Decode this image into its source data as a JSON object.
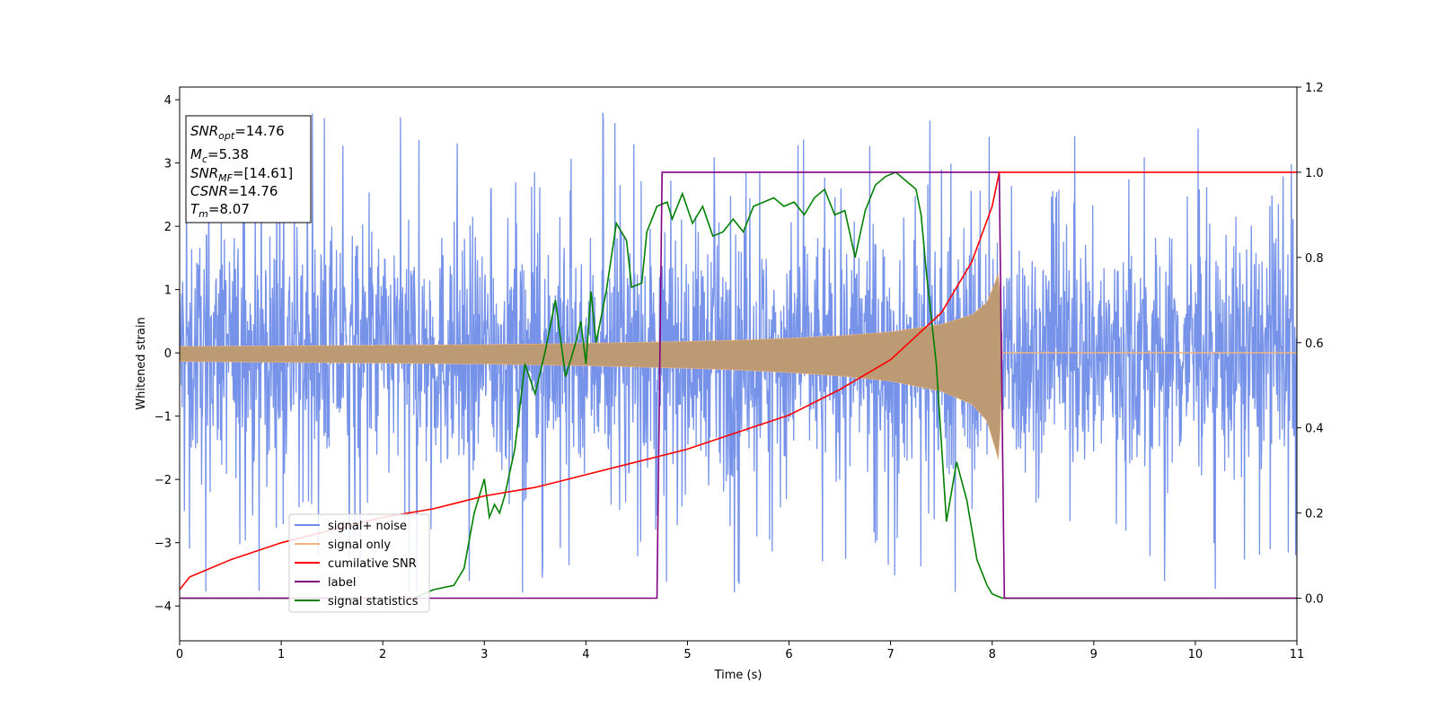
{
  "chart_data": {
    "type": "line",
    "title": "",
    "xlabel": "Time (s)",
    "ylabel": "Whitened strain",
    "y2label": "",
    "xlim": [
      0,
      11
    ],
    "ylim": [
      -4.55,
      4.2
    ],
    "y2lim": [
      -0.1,
      1.2
    ],
    "xticks": [
      "0",
      "1",
      "2",
      "3",
      "4",
      "5",
      "6",
      "7",
      "8",
      "9",
      "10",
      "11"
    ],
    "yticks": [
      "−4",
      "−3",
      "−2",
      "−1",
      "0",
      "1",
      "2",
      "3",
      "4"
    ],
    "y2ticks": [
      "0.0",
      "0.2",
      "0.4",
      "0.6",
      "0.8",
      "1.0",
      "1.2"
    ],
    "grid": false,
    "legend_location": "lower-left",
    "colors": {
      "signal_noise": "#6f8de8",
      "signal_only": "#f5b47c",
      "cumulative_snr": "#ff0000",
      "label": "#800080",
      "signal_statistics": "#008000"
    },
    "annotation": {
      "snr_opt": {
        "sym": "SNR",
        "sub": "opt",
        "val": "=14.76"
      },
      "mc": {
        "sym": "M",
        "sub": "c",
        "val": "=5.38"
      },
      "snr_mf": {
        "sym": "SNR",
        "sub": "MF",
        "val": "=[14.61]"
      },
      "csnr": {
        "sym": "CSNR",
        "val": "=14.76"
      },
      "tm": {
        "sym": "T",
        "sub": "m",
        "val": "=8.07"
      }
    },
    "series": [
      {
        "name": "signal+ noise",
        "axis": "left",
        "description_values": "stationary noise, amplitude approx ±2.5 with excursions to ±3.8, over t in [0, 11]",
        "noise_envelope": {
          "typical": 2.3,
          "peak": 3.8
        }
      },
      {
        "name": "signal only",
        "axis": "left",
        "envelope": {
          "t": [
            0,
            1,
            2,
            3,
            4,
            5,
            5.5,
            6,
            6.5,
            7,
            7.5,
            7.8,
            7.95,
            8.05,
            8.07,
            8.1,
            11
          ],
          "amp": [
            0.1,
            0.11,
            0.12,
            0.13,
            0.15,
            0.18,
            0.2,
            0.23,
            0.27,
            0.33,
            0.45,
            0.6,
            0.8,
            1.2,
            1.3,
            0,
            0
          ]
        }
      },
      {
        "name": "cumilative SNR",
        "axis": "right",
        "x": [
          0,
          0.1,
          0.5,
          1,
          1.5,
          2,
          2.5,
          3,
          3.5,
          4,
          4.5,
          5,
          5.5,
          6,
          6.5,
          7,
          7.5,
          7.8,
          8,
          8.07,
          8.1,
          11
        ],
        "y": [
          0.02,
          0.05,
          0.09,
          0.13,
          0.16,
          0.19,
          0.21,
          0.24,
          0.26,
          0.29,
          0.32,
          0.35,
          0.39,
          0.43,
          0.49,
          0.56,
          0.67,
          0.79,
          0.92,
          1.0,
          1.0,
          1.0
        ]
      },
      {
        "name": "label",
        "axis": "right",
        "x": [
          0,
          4.7,
          4.75,
          8.07,
          8.12,
          11
        ],
        "y": [
          0,
          0,
          1,
          1,
          0,
          0
        ]
      },
      {
        "name": "signal statistics",
        "axis": "right",
        "x": [
          0,
          2.3,
          2.5,
          2.7,
          2.8,
          2.9,
          3.0,
          3.05,
          3.1,
          3.15,
          3.2,
          3.3,
          3.4,
          3.5,
          3.6,
          3.7,
          3.8,
          3.9,
          3.95,
          4.0,
          4.05,
          4.1,
          4.2,
          4.3,
          4.4,
          4.45,
          4.55,
          4.6,
          4.7,
          4.8,
          4.85,
          4.95,
          5.05,
          5.15,
          5.25,
          5.35,
          5.45,
          5.55,
          5.65,
          5.75,
          5.85,
          5.95,
          6.05,
          6.15,
          6.25,
          6.35,
          6.45,
          6.55,
          6.65,
          6.75,
          6.85,
          6.95,
          7.05,
          7.15,
          7.25,
          7.3,
          7.35,
          7.45,
          7.55,
          7.65,
          7.75,
          7.85,
          7.95,
          8.0,
          8.1,
          11
        ],
        "y": [
          0.0,
          0.0,
          0.02,
          0.03,
          0.07,
          0.2,
          0.28,
          0.19,
          0.22,
          0.2,
          0.24,
          0.35,
          0.55,
          0.48,
          0.58,
          0.7,
          0.52,
          0.6,
          0.65,
          0.55,
          0.72,
          0.6,
          0.72,
          0.88,
          0.84,
          0.73,
          0.74,
          0.86,
          0.92,
          0.93,
          0.89,
          0.95,
          0.88,
          0.92,
          0.85,
          0.86,
          0.89,
          0.86,
          0.92,
          0.93,
          0.94,
          0.92,
          0.93,
          0.9,
          0.94,
          0.96,
          0.9,
          0.91,
          0.8,
          0.91,
          0.97,
          0.99,
          1.0,
          0.98,
          0.96,
          0.9,
          0.77,
          0.55,
          0.18,
          0.32,
          0.23,
          0.09,
          0.03,
          0.01,
          0.0,
          0.0
        ]
      }
    ]
  }
}
